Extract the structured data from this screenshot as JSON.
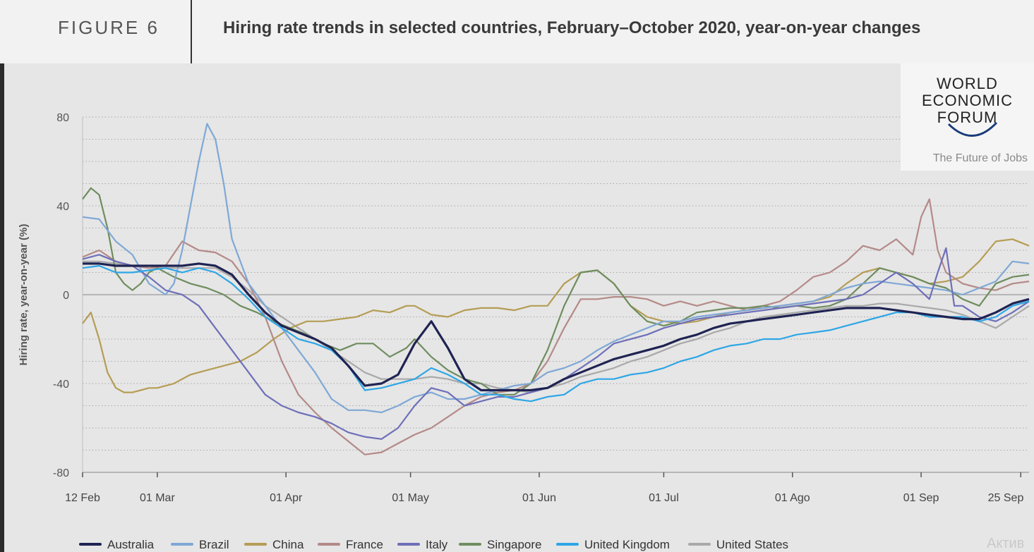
{
  "header": {
    "figure_label": "FIGURE 6",
    "title": "Hiring rate trends in selected countries, February–October 2020, year-on-year changes"
  },
  "logo": {
    "line1": "WORLD",
    "line2": "ECONOMIC",
    "line3": "FORUM",
    "subtitle": "The Future of Jobs"
  },
  "watermark": "Актив",
  "colors": {
    "Australia": "#1f2352",
    "Brazil": "#7fa8d6",
    "China": "#b59d54",
    "France": "#b48a88",
    "Italy": "#6e6fb8",
    "Singapore": "#6f8d5f",
    "United Kingdom": "#2ea6e6",
    "United States": "#a9a9a9"
  },
  "chart_data": {
    "type": "line",
    "title": "Hiring rate trends in selected countries, February–October 2020, year-on-year changes",
    "xlabel": "",
    "ylabel": "Hiring rate, year-on-year (%)",
    "ylim": [
      -80,
      80
    ],
    "yticks": [
      80,
      40,
      0,
      -40,
      -80
    ],
    "x_tick_labels": [
      "12 Feb",
      "01 Mar",
      "01 Apr",
      "01 May",
      "01 Jun",
      "01 Jul",
      "01 Ago",
      "01 Sep",
      "25 Sep"
    ],
    "x_tick_days": [
      0,
      18,
      49,
      79,
      110,
      140,
      171,
      202,
      226
    ],
    "xlim_days": [
      0,
      228
    ],
    "grid": true,
    "legend_position": "bottom",
    "series": [
      {
        "name": "Australia",
        "x": [
          0,
          4,
          8,
          12,
          16,
          20,
          24,
          28,
          32,
          36,
          40,
          44,
          48,
          52,
          56,
          60,
          64,
          68,
          72,
          76,
          80,
          84,
          88,
          92,
          96,
          100,
          104,
          108,
          112,
          116,
          120,
          124,
          128,
          132,
          136,
          140,
          144,
          148,
          152,
          156,
          160,
          164,
          168,
          172,
          176,
          180,
          184,
          188,
          192,
          196,
          200,
          204,
          208,
          212,
          216,
          220,
          224,
          228
        ],
        "y": [
          14,
          14,
          13,
          13,
          13,
          13,
          13,
          14,
          13,
          9,
          0,
          -8,
          -14,
          -17,
          -20,
          -24,
          -32,
          -41,
          -40,
          -36,
          -22,
          -12,
          -24,
          -38,
          -43,
          -43,
          -43,
          -43,
          -42,
          -38,
          -35,
          -32,
          -29,
          -27,
          -25,
          -23,
          -20,
          -18,
          -15,
          -13,
          -12,
          -11,
          -10,
          -9,
          -8,
          -7,
          -6,
          -6,
          -6,
          -7,
          -8,
          -9,
          -10,
          -11,
          -11,
          -8,
          -4,
          -2
        ]
      },
      {
        "name": "Brazil",
        "x": [
          0,
          4,
          8,
          12,
          16,
          20,
          22,
          24,
          26,
          28,
          30,
          32,
          34,
          36,
          40,
          44,
          48,
          52,
          56,
          60,
          64,
          68,
          72,
          76,
          80,
          84,
          88,
          92,
          96,
          100,
          104,
          108,
          112,
          116,
          120,
          124,
          128,
          132,
          136,
          140,
          144,
          148,
          152,
          156,
          160,
          164,
          168,
          172,
          176,
          180,
          184,
          188,
          192,
          196,
          200,
          204,
          208,
          212,
          216,
          220,
          224,
          228
        ],
        "y": [
          35,
          34,
          24,
          18,
          5,
          0,
          5,
          20,
          40,
          60,
          77,
          70,
          50,
          25,
          5,
          -5,
          -15,
          -25,
          -35,
          -47,
          -52,
          -52,
          -53,
          -50,
          -46,
          -44,
          -47,
          -47,
          -45,
          -43,
          -41,
          -40,
          -35,
          -33,
          -30,
          -25,
          -21,
          -18,
          -15,
          -12,
          -12,
          -10,
          -9,
          -8,
          -7,
          -6,
          -5,
          -4,
          -3,
          0,
          3,
          5,
          6,
          5,
          4,
          3,
          2,
          0,
          3,
          6,
          15,
          14
        ]
      },
      {
        "name": "China",
        "x": [
          0,
          2,
          4,
          6,
          8,
          10,
          12,
          14,
          16,
          18,
          22,
          26,
          30,
          34,
          38,
          42,
          46,
          50,
          54,
          58,
          62,
          66,
          70,
          74,
          78,
          80,
          84,
          88,
          92,
          96,
          100,
          104,
          108,
          112,
          116,
          120,
          124,
          128,
          132,
          136,
          140,
          144,
          148,
          152,
          156,
          160,
          164,
          168,
          172,
          176,
          180,
          184,
          188,
          192,
          196,
          200,
          204,
          208,
          212,
          216,
          220,
          224,
          228
        ],
        "y": [
          -13,
          -8,
          -20,
          -35,
          -42,
          -44,
          -44,
          -43,
          -42,
          -42,
          -40,
          -36,
          -34,
          -32,
          -30,
          -26,
          -20,
          -15,
          -12,
          -12,
          -11,
          -10,
          -7,
          -8,
          -5,
          -5,
          -9,
          -10,
          -7,
          -6,
          -6,
          -7,
          -5,
          -5,
          5,
          10,
          11,
          5,
          -5,
          -10,
          -12,
          -13,
          -12,
          -10,
          -8,
          -7,
          -6,
          -5,
          -4,
          -3,
          -1,
          5,
          10,
          12,
          10,
          8,
          5,
          6,
          8,
          15,
          24,
          25,
          22
        ]
      },
      {
        "name": "France",
        "x": [
          0,
          4,
          8,
          12,
          16,
          20,
          24,
          28,
          32,
          36,
          40,
          44,
          48,
          52,
          56,
          60,
          64,
          68,
          72,
          76,
          80,
          84,
          88,
          92,
          96,
          100,
          104,
          108,
          112,
          116,
          120,
          124,
          128,
          132,
          136,
          140,
          144,
          148,
          152,
          156,
          160,
          164,
          168,
          172,
          176,
          180,
          184,
          188,
          192,
          196,
          200,
          202,
          204,
          206,
          208,
          212,
          216,
          220,
          224,
          228
        ],
        "y": [
          17,
          20,
          15,
          13,
          12,
          13,
          24,
          20,
          19,
          15,
          5,
          -10,
          -30,
          -45,
          -53,
          -60,
          -66,
          -72,
          -71,
          -67,
          -63,
          -60,
          -55,
          -50,
          -46,
          -44,
          -43,
          -40,
          -30,
          -15,
          -2,
          -2,
          -1,
          -1,
          -2,
          -5,
          -3,
          -5,
          -3,
          -5,
          -7,
          -5,
          -3,
          2,
          8,
          10,
          15,
          22,
          20,
          25,
          18,
          35,
          43,
          20,
          10,
          5,
          3,
          2,
          5,
          6
        ]
      },
      {
        "name": "Italy",
        "x": [
          0,
          4,
          8,
          12,
          16,
          20,
          24,
          28,
          32,
          36,
          40,
          44,
          48,
          52,
          56,
          60,
          64,
          68,
          72,
          76,
          80,
          84,
          88,
          92,
          96,
          100,
          104,
          108,
          112,
          116,
          120,
          124,
          128,
          132,
          136,
          140,
          144,
          148,
          152,
          156,
          160,
          164,
          168,
          172,
          176,
          180,
          184,
          188,
          192,
          196,
          200,
          204,
          206,
          208,
          210,
          212,
          216,
          220,
          224,
          228
        ],
        "y": [
          16,
          18,
          15,
          13,
          8,
          2,
          0,
          -5,
          -15,
          -25,
          -35,
          -45,
          -50,
          -53,
          -55,
          -58,
          -62,
          -64,
          -65,
          -60,
          -50,
          -42,
          -44,
          -50,
          -48,
          -46,
          -46,
          -44,
          -42,
          -38,
          -33,
          -28,
          -22,
          -20,
          -18,
          -15,
          -13,
          -11,
          -10,
          -9,
          -8,
          -7,
          -6,
          -5,
          -4,
          -3,
          -2,
          0,
          5,
          10,
          5,
          -2,
          10,
          21,
          -5,
          -5,
          -10,
          -12,
          -8,
          -3
        ]
      },
      {
        "name": "Singapore",
        "x": [
          0,
          2,
          4,
          6,
          8,
          10,
          12,
          14,
          16,
          18,
          22,
          26,
          30,
          34,
          38,
          42,
          46,
          50,
          54,
          58,
          62,
          66,
          70,
          74,
          78,
          80,
          84,
          88,
          92,
          96,
          100,
          104,
          108,
          112,
          116,
          120,
          124,
          128,
          132,
          136,
          140,
          144,
          148,
          152,
          156,
          160,
          164,
          168,
          172,
          176,
          180,
          184,
          188,
          192,
          196,
          200,
          204,
          208,
          212,
          216,
          220,
          224,
          228
        ],
        "y": [
          43,
          48,
          45,
          30,
          10,
          5,
          2,
          5,
          10,
          12,
          8,
          5,
          3,
          0,
          -5,
          -8,
          -12,
          -15,
          -18,
          -22,
          -25,
          -22,
          -22,
          -28,
          -24,
          -20,
          -28,
          -34,
          -38,
          -40,
          -45,
          -45,
          -40,
          -25,
          -5,
          10,
          11,
          5,
          -5,
          -12,
          -14,
          -12,
          -8,
          -7,
          -6,
          -6,
          -5,
          -6,
          -5,
          -6,
          -5,
          -2,
          5,
          12,
          10,
          8,
          5,
          3,
          -2,
          -5,
          5,
          8,
          9
        ]
      },
      {
        "name": "United Kingdom",
        "x": [
          0,
          4,
          8,
          12,
          16,
          20,
          24,
          28,
          32,
          36,
          40,
          44,
          48,
          52,
          56,
          60,
          64,
          68,
          72,
          76,
          80,
          84,
          88,
          92,
          96,
          100,
          104,
          108,
          112,
          116,
          120,
          124,
          128,
          132,
          136,
          140,
          144,
          148,
          152,
          156,
          160,
          164,
          168,
          172,
          176,
          180,
          184,
          188,
          192,
          196,
          200,
          204,
          208,
          212,
          216,
          220,
          224,
          228
        ],
        "y": [
          12,
          13,
          10,
          10,
          11,
          12,
          10,
          12,
          10,
          5,
          -2,
          -10,
          -15,
          -20,
          -22,
          -25,
          -32,
          -43,
          -42,
          -40,
          -38,
          -33,
          -36,
          -40,
          -45,
          -45,
          -47,
          -48,
          -46,
          -45,
          -40,
          -38,
          -38,
          -36,
          -35,
          -33,
          -30,
          -28,
          -25,
          -23,
          -22,
          -20,
          -20,
          -18,
          -17,
          -16,
          -14,
          -12,
          -10,
          -8,
          -8,
          -10,
          -10,
          -10,
          -12,
          -10,
          -5,
          -3
        ]
      },
      {
        "name": "United States",
        "x": [
          0,
          4,
          8,
          12,
          16,
          20,
          24,
          28,
          32,
          36,
          40,
          44,
          48,
          52,
          56,
          60,
          64,
          68,
          72,
          76,
          80,
          84,
          88,
          92,
          96,
          100,
          104,
          108,
          112,
          116,
          120,
          124,
          128,
          132,
          136,
          140,
          144,
          148,
          152,
          156,
          160,
          164,
          168,
          172,
          176,
          180,
          184,
          188,
          192,
          196,
          200,
          204,
          208,
          212,
          216,
          220,
          224,
          228
        ],
        "y": [
          15,
          15,
          14,
          13,
          12,
          12,
          12,
          12,
          12,
          8,
          2,
          -5,
          -10,
          -15,
          -20,
          -25,
          -30,
          -35,
          -38,
          -38,
          -38,
          -37,
          -38,
          -40,
          -40,
          -42,
          -43,
          -44,
          -42,
          -40,
          -37,
          -35,
          -33,
          -30,
          -28,
          -25,
          -22,
          -20,
          -17,
          -15,
          -12,
          -10,
          -9,
          -8,
          -7,
          -6,
          -5,
          -5,
          -4,
          -4,
          -5,
          -6,
          -7,
          -9,
          -12,
          -15,
          -10,
          -5
        ]
      }
    ]
  }
}
